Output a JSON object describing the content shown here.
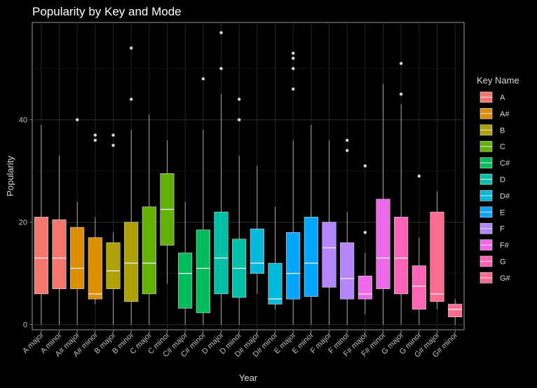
{
  "chart_data": {
    "type": "box",
    "title": "Popularity by Key and Mode",
    "xlabel": "Year",
    "ylabel": "Popularity",
    "ylim": [
      -1,
      59
    ],
    "yticks": [
      0,
      20,
      40
    ],
    "grid": true,
    "legend": {
      "title": "Key Name",
      "placement": "right"
    },
    "background": "#000000",
    "categories": [
      "A major",
      "A minor",
      "A# major",
      "A# minor",
      "B major",
      "B minor",
      "C major",
      "C minor",
      "C# major",
      "C# minor",
      "D major",
      "D minor",
      "D# major",
      "D# minor",
      "E major",
      "E minor",
      "F major",
      "F minor",
      "F# major",
      "F# minor",
      "G major",
      "G minor",
      "G# major",
      "G# minor"
    ],
    "keys": [
      {
        "name": "A",
        "color": "#F8766D"
      },
      {
        "name": "A#",
        "color": "#DB8E00"
      },
      {
        "name": "B",
        "color": "#AEA200"
      },
      {
        "name": "C",
        "color": "#64B200"
      },
      {
        "name": "C#",
        "color": "#00BD5C"
      },
      {
        "name": "D",
        "color": "#00C1A7"
      },
      {
        "name": "D#",
        "color": "#00BADE"
      },
      {
        "name": "E",
        "color": "#00A6FF"
      },
      {
        "name": "F",
        "color": "#B385FF"
      },
      {
        "name": "F#",
        "color": "#EF67EB"
      },
      {
        "name": "G",
        "color": "#FF63B6"
      },
      {
        "name": "G#",
        "color": "#FF6C91"
      }
    ],
    "boxes": [
      {
        "category": "A major",
        "key": "A",
        "min": 0,
        "q1": 6,
        "median": 13,
        "q3": 21,
        "max": 39,
        "outliers": []
      },
      {
        "category": "A minor",
        "key": "A",
        "min": 0,
        "q1": 7,
        "median": 13,
        "q3": 20.5,
        "max": 33,
        "outliers": []
      },
      {
        "category": "A# major",
        "key": "A#",
        "min": 0,
        "q1": 7,
        "median": 11,
        "q3": 19,
        "max": 24,
        "outliers": [
          40
        ]
      },
      {
        "category": "A# minor",
        "key": "A#",
        "min": 4,
        "q1": 5,
        "median": 6,
        "q3": 17,
        "max": 21,
        "outliers": [
          36,
          37
        ]
      },
      {
        "category": "B major",
        "key": "B",
        "min": 0,
        "q1": 7,
        "median": 10.5,
        "q3": 16,
        "max": 18,
        "outliers": [
          35,
          37
        ]
      },
      {
        "category": "B minor",
        "key": "B",
        "min": 0,
        "q1": 4.5,
        "median": 12,
        "q3": 20,
        "max": 38,
        "outliers": [
          44,
          54
        ]
      },
      {
        "category": "C major",
        "key": "C",
        "min": 0,
        "q1": 6,
        "median": 12,
        "q3": 23,
        "max": 41,
        "outliers": []
      },
      {
        "category": "C minor",
        "key": "C",
        "min": 8,
        "q1": 15.5,
        "median": 22.5,
        "q3": 29.5,
        "max": 36,
        "outliers": []
      },
      {
        "category": "C# major",
        "key": "C#",
        "min": 0,
        "q1": 3.2,
        "median": 10,
        "q3": 14,
        "max": 24,
        "outliers": []
      },
      {
        "category": "C# minor",
        "key": "C#",
        "min": 0,
        "q1": 2.3,
        "median": 11,
        "q3": 18.5,
        "max": 38,
        "outliers": [
          48
        ]
      },
      {
        "category": "D major",
        "key": "D",
        "min": 0,
        "q1": 6,
        "median": 13,
        "q3": 22,
        "max": 45,
        "outliers": [
          50,
          57
        ]
      },
      {
        "category": "D minor",
        "key": "D",
        "min": 0,
        "q1": 5.3,
        "median": 11,
        "q3": 16.7,
        "max": 33,
        "outliers": [
          40,
          44
        ]
      },
      {
        "category": "D# major",
        "key": "D#",
        "min": 6,
        "q1": 10,
        "median": 12,
        "q3": 18.7,
        "max": 31,
        "outliers": []
      },
      {
        "category": "D# minor",
        "key": "D#",
        "min": 3,
        "q1": 4,
        "median": 5,
        "q3": 12,
        "max": 23,
        "outliers": []
      },
      {
        "category": "E major",
        "key": "E",
        "min": 0,
        "q1": 5,
        "median": 10,
        "q3": 18,
        "max": 36,
        "outliers": [
          46,
          50,
          52,
          53
        ]
      },
      {
        "category": "E minor",
        "key": "E",
        "min": 0,
        "q1": 5.5,
        "median": 12,
        "q3": 21,
        "max": 39,
        "outliers": []
      },
      {
        "category": "F major",
        "key": "F",
        "min": 0,
        "q1": 7.3,
        "median": 15,
        "q3": 20,
        "max": 36,
        "outliers": []
      },
      {
        "category": "F minor",
        "key": "F",
        "min": 0,
        "q1": 5,
        "median": 9,
        "q3": 16,
        "max": 22,
        "outliers": [
          34,
          36
        ]
      },
      {
        "category": "F# major",
        "key": "F#",
        "min": 2,
        "q1": 5,
        "median": 6,
        "q3": 9.5,
        "max": 14,
        "outliers": [
          18,
          31
        ]
      },
      {
        "category": "F# minor",
        "key": "F#",
        "min": 0,
        "q1": 7,
        "median": 13,
        "q3": 24.5,
        "max": 47,
        "outliers": []
      },
      {
        "category": "G major",
        "key": "G",
        "min": 0,
        "q1": 6,
        "median": 13,
        "q3": 21,
        "max": 43,
        "outliers": [
          45,
          51
        ]
      },
      {
        "category": "G minor",
        "key": "G",
        "min": 0,
        "q1": 3,
        "median": 7.5,
        "q3": 11.5,
        "max": 17,
        "outliers": [
          29
        ]
      },
      {
        "category": "G# major",
        "key": "G#",
        "min": 3,
        "q1": 4.5,
        "median": 6,
        "q3": 22,
        "max": 26,
        "outliers": []
      },
      {
        "category": "G# minor",
        "key": "G#",
        "min": 0,
        "q1": 1.5,
        "median": 3,
        "q3": 4,
        "max": 5,
        "outliers": []
      }
    ]
  }
}
